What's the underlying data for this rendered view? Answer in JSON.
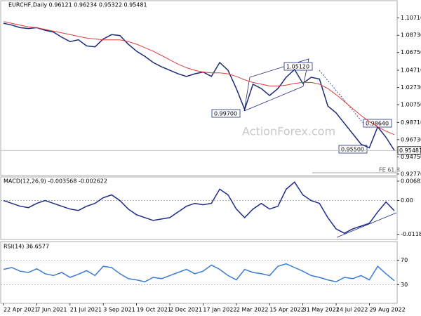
{
  "chart_data": [
    {
      "type": "line",
      "title": "EURCHF,Daily 0.96121 0.96234 0.95322 0.95481",
      "series": [
        {
          "color": "#1c2a7a",
          "values": [
            1.101,
            1.099,
            1.096,
            1.095,
            1.096,
            1.093,
            1.091,
            1.085,
            1.08,
            1.082,
            1.075,
            1.074,
            1.083,
            1.088,
            1.087,
            1.077,
            1.069,
            1.063,
            1.056,
            1.051,
            1.047,
            1.043,
            1.04,
            1.043,
            1.045,
            1.04,
            1.056,
            1.047,
            1.026,
            1.002,
            1.031,
            1.026,
            1.018,
            1.026,
            1.039,
            1.048,
            1.032,
            1.039,
            1.037,
            1.006,
            0.998,
            0.986,
            0.974,
            0.962,
            0.958,
            0.982,
            0.97,
            0.955
          ]
        },
        {
          "color": "#e23b3b",
          "values": [
            1.103,
            1.101,
            1.099,
            1.097,
            1.096,
            1.094,
            1.092,
            1.09,
            1.088,
            1.086,
            1.084,
            1.083,
            1.082,
            1.082,
            1.082,
            1.08,
            1.077,
            1.073,
            1.069,
            1.064,
            1.059,
            1.054,
            1.05,
            1.047,
            1.045,
            1.044,
            1.044,
            1.043,
            1.04,
            1.036,
            1.033,
            1.031,
            1.029,
            1.029,
            1.03,
            1.032,
            1.033,
            1.033,
            1.031,
            1.026,
            1.019,
            1.011,
            1.003,
            0.995,
            0.988,
            0.982,
            0.977,
            0.973
          ]
        }
      ],
      "ylim": [
        0.926,
        1.127
      ],
      "yticks": [
        {
          "value": 1.1071,
          "label": "1.10710"
        },
        {
          "value": 1.0873,
          "label": "1.08730"
        },
        {
          "value": 1.0675,
          "label": "1.06750"
        },
        {
          "value": 1.0471,
          "label": "1.04710"
        },
        {
          "value": 1.0273,
          "label": "1.02730"
        },
        {
          "value": 1.0075,
          "label": "1.00750"
        },
        {
          "value": 0.9871,
          "label": "0.98710"
        },
        {
          "value": 0.9673,
          "label": "0.96730"
        },
        {
          "value": 0.9475,
          "label": "0.94750"
        },
        {
          "value": 0.9277,
          "label": "0.92770"
        }
      ],
      "last_price": 0.95481,
      "annotations": [
        "0.99700",
        "1.05120",
        "0.98640",
        "0.95500"
      ],
      "fe_label": "FE 61.8",
      "watermark": "ActionForex.com"
    },
    {
      "type": "line",
      "title": "MACD(12,26,9) -0.003568 -0.002622",
      "series": [
        {
          "color": "#1c2a8a",
          "values": [
            0.0,
            -0.001,
            -0.002,
            -0.0025,
            -0.001,
            0.0,
            -0.001,
            -0.002,
            -0.003,
            -0.0035,
            -0.002,
            -0.001,
            0.001,
            0.002,
            0.0,
            -0.003,
            -0.005,
            -0.006,
            -0.007,
            -0.0065,
            -0.006,
            -0.004,
            -0.002,
            -0.001,
            -0.0015,
            -0.001,
            0.004,
            0.002,
            -0.003,
            -0.006,
            -0.003,
            -0.001,
            -0.003,
            -0.002,
            0.004,
            0.0065,
            0.002,
            0.0,
            -0.001,
            -0.006,
            -0.01,
            -0.0115,
            -0.01,
            -0.009,
            -0.008,
            -0.004,
            -0.0005,
            -0.0036
          ]
        }
      ],
      "ylim": [
        -0.0137,
        0.0083
      ],
      "yticks": [
        0.006823,
        {
          "value": 0,
          "label": "0.00"
        },
        -0.011874
      ],
      "zero_line": true
    },
    {
      "type": "line",
      "title": "RSI(14) 36.6577",
      "categories": [
        "22 Apr 2021",
        null,
        null,
        null,
        "7 Jun 2021",
        null,
        null,
        null,
        "21 Jul 2021",
        null,
        null,
        null,
        "3 Sep 2021",
        null,
        null,
        null,
        "19 Oct 2021",
        null,
        null,
        null,
        "2 Dec 2021",
        null,
        null,
        null,
        "17 Jan 2022",
        null,
        null,
        null,
        "2 Mar 2022",
        null,
        null,
        null,
        "15 Apr 2022",
        null,
        null,
        null,
        "31 May 2022",
        null,
        null,
        null,
        "14 Jul 2022",
        null,
        null,
        null,
        "29 Aug 2022",
        null,
        null,
        null
      ],
      "series": [
        {
          "color": "#3a7bd5",
          "values": [
            55,
            58,
            52,
            50,
            56,
            48,
            45,
            50,
            42,
            47,
            53,
            45,
            60,
            58,
            48,
            40,
            38,
            35,
            42,
            40,
            45,
            50,
            55,
            48,
            52,
            62,
            55,
            45,
            38,
            55,
            50,
            48,
            45,
            60,
            64,
            58,
            52,
            45,
            42,
            38,
            35,
            42,
            40,
            45,
            38,
            60,
            48,
            36.6577
          ]
        }
      ],
      "ylim": [
        0,
        100
      ],
      "yticks": [
        70,
        30
      ],
      "grid": true
    }
  ]
}
